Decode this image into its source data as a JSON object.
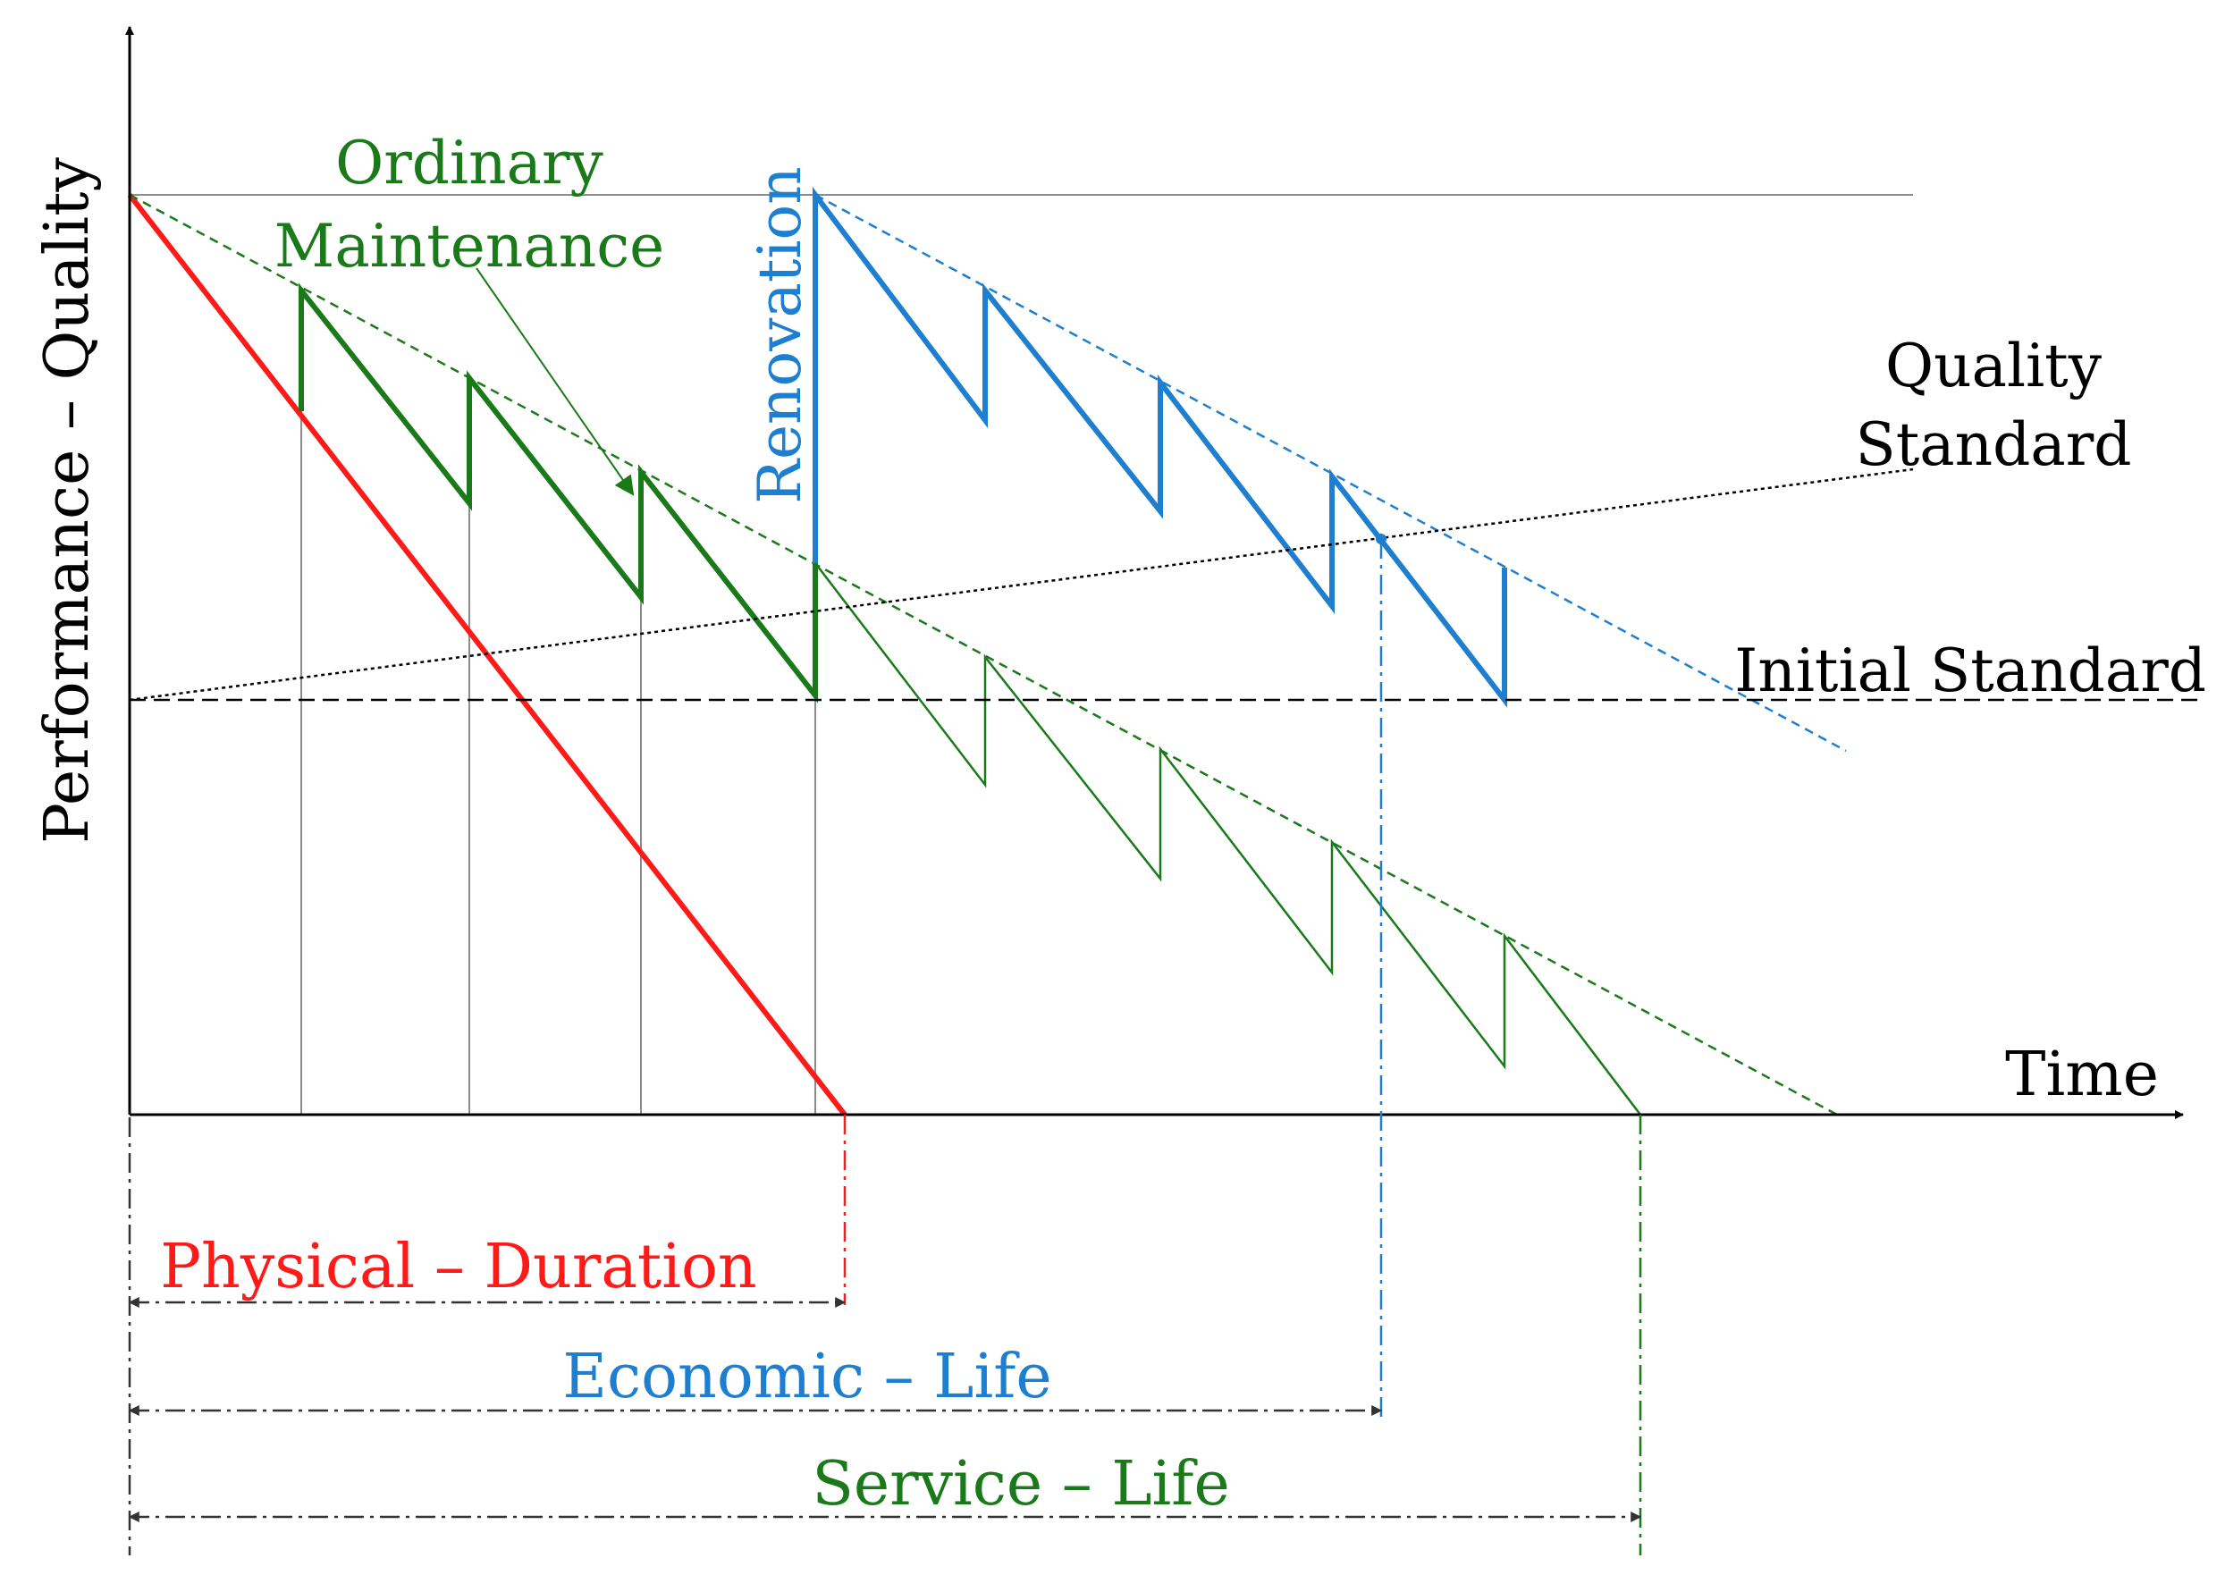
{
  "axes": {
    "y_label": "Performance – Quality",
    "x_label": "Time"
  },
  "labels": {
    "ordinary_maintenance": [
      "Ordinary",
      "Maintenance"
    ],
    "renovation": "Renovation",
    "quality_standard": [
      "Quality",
      "Standard"
    ],
    "initial_standard": "Initial Standard"
  },
  "lifespans": {
    "physical_duration": "Physical – Duration",
    "economic_life": "Economic – Life",
    "service_life": "Service – Life"
  },
  "colors": {
    "axis": "#000000",
    "physical": "#ff1a1a",
    "maintenance": "#1a7a1a",
    "renovation": "#1e7fd0",
    "guide": "#8c8c8c",
    "standard": "#000000"
  }
}
